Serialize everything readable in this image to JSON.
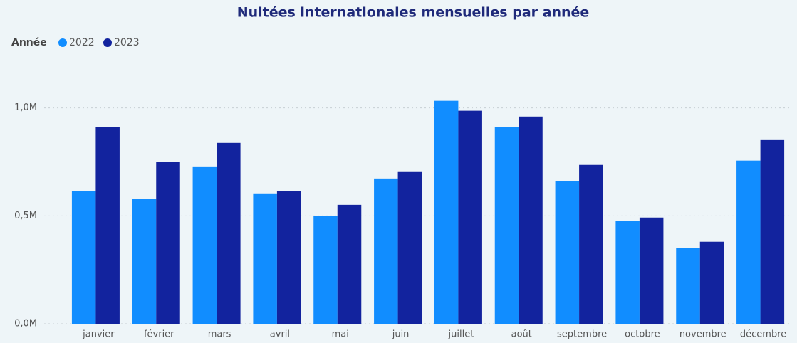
{
  "chart_data": {
    "type": "bar",
    "title": "Nuitées internationales mensuelles par année",
    "legend_title": "Année",
    "categories": [
      "janvier",
      "février",
      "mars",
      "avril",
      "mai",
      "juin",
      "juillet",
      "août",
      "septembre",
      "octobre",
      "novembre",
      "décembre"
    ],
    "series": [
      {
        "name": "2022",
        "color": "#118dff",
        "values": [
          614000,
          578000,
          729000,
          604000,
          498000,
          673000,
          1033000,
          911000,
          660000,
          475000,
          350000,
          756000
        ]
      },
      {
        "name": "2023",
        "color": "#12239e",
        "values": [
          911000,
          749000,
          838000,
          614000,
          551000,
          703000,
          987000,
          960000,
          736000,
          492000,
          380000,
          851000
        ]
      }
    ],
    "ylim": [
      0,
      1200000
    ],
    "yticks": [
      {
        "value": 0,
        "label": "0,0M"
      },
      {
        "value": 500000,
        "label": "0,5M"
      },
      {
        "value": 1000000,
        "label": "1,0M"
      }
    ],
    "grid": true
  }
}
